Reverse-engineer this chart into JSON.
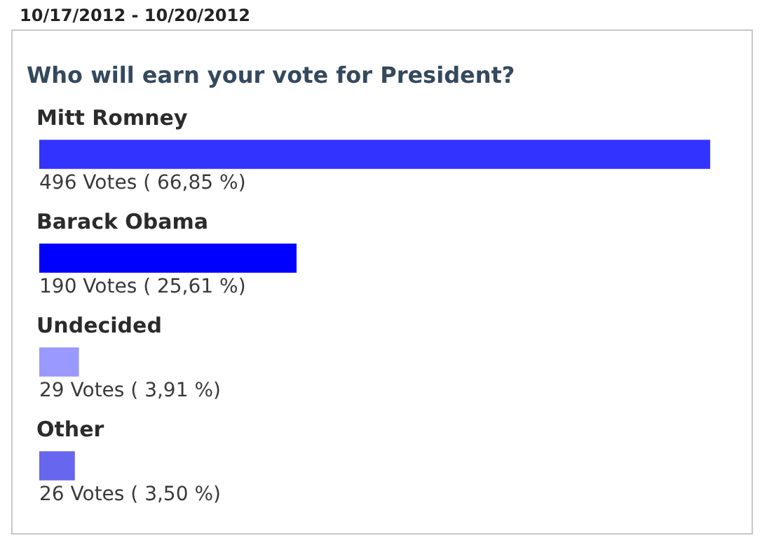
{
  "chart_data": {
    "type": "bar",
    "orientation": "horizontal",
    "subtitle": "10/17/2012 - 10/20/2012",
    "title": "Who will earn your vote for President?",
    "categories": [
      "Mitt Romney",
      "Barack Obama",
      "Undecided",
      "Other"
    ],
    "values": [
      496,
      190,
      29,
      26
    ],
    "colors": [
      "#3333ff",
      "#0000ff",
      "#9999ff",
      "#6666ee"
    ],
    "value_labels": [
      "496 Votes ( 66,85 %)",
      "190 Votes ( 25,61 %)",
      "29 Votes ( 3,91 %)",
      "26 Votes ( 3,50 %)"
    ],
    "legend": false
  }
}
